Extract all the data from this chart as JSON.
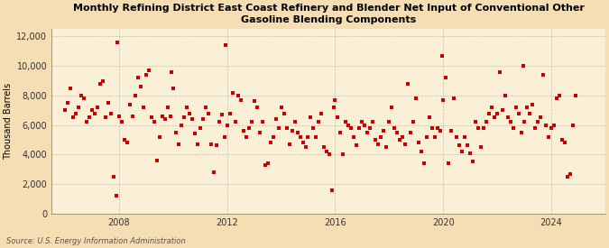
{
  "title": "Monthly Refining District East Coast Refinery and Blender Net Input of Conventional Other\nGasoline Blending Components",
  "ylabel": "Thousand Barrels",
  "source": "Source: U.S. Energy Information Administration",
  "bg_color": "#f5deb3",
  "plot_bg_color": "#faf0d7",
  "marker_color": "#cc0000",
  "marker_size": 5,
  "ylim": [
    0,
    12500
  ],
  "yticks": [
    0,
    2000,
    4000,
    6000,
    8000,
    10000,
    12000
  ],
  "ytick_labels": [
    "0",
    "2,000",
    "4,000",
    "6,000",
    "8,000",
    "10,000",
    "12,000"
  ],
  "xticks": [
    2008,
    2012,
    2016,
    2020,
    2024
  ],
  "xlim": [
    2005.5,
    2026.0
  ],
  "data": [
    [
      2006.0,
      7000
    ],
    [
      2006.1,
      7500
    ],
    [
      2006.2,
      8500
    ],
    [
      2006.3,
      6500
    ],
    [
      2006.4,
      6800
    ],
    [
      2006.5,
      7200
    ],
    [
      2006.6,
      8000
    ],
    [
      2006.7,
      7800
    ],
    [
      2006.8,
      6200
    ],
    [
      2006.9,
      6500
    ],
    [
      2007.0,
      7000
    ],
    [
      2007.1,
      6800
    ],
    [
      2007.2,
      7200
    ],
    [
      2007.3,
      8800
    ],
    [
      2007.4,
      9000
    ],
    [
      2007.5,
      6500
    ],
    [
      2007.6,
      7500
    ],
    [
      2007.7,
      6800
    ],
    [
      2007.8,
      2500
    ],
    [
      2007.9,
      1200
    ],
    [
      2007.95,
      11600
    ],
    [
      2008.0,
      6600
    ],
    [
      2008.1,
      6200
    ],
    [
      2008.2,
      5000
    ],
    [
      2008.3,
      4800
    ],
    [
      2008.4,
      7400
    ],
    [
      2008.5,
      6600
    ],
    [
      2008.6,
      8000
    ],
    [
      2008.7,
      9200
    ],
    [
      2008.8,
      8600
    ],
    [
      2008.9,
      7200
    ],
    [
      2009.0,
      9400
    ],
    [
      2009.1,
      9700
    ],
    [
      2009.2,
      6500
    ],
    [
      2009.3,
      6200
    ],
    [
      2009.4,
      3600
    ],
    [
      2009.5,
      5200
    ],
    [
      2009.6,
      6600
    ],
    [
      2009.7,
      6400
    ],
    [
      2009.8,
      7200
    ],
    [
      2009.9,
      6600
    ],
    [
      2009.95,
      9600
    ],
    [
      2010.0,
      8500
    ],
    [
      2010.1,
      5500
    ],
    [
      2010.2,
      4700
    ],
    [
      2010.3,
      6000
    ],
    [
      2010.4,
      6500
    ],
    [
      2010.5,
      7200
    ],
    [
      2010.6,
      6800
    ],
    [
      2010.7,
      6400
    ],
    [
      2010.8,
      5400
    ],
    [
      2010.9,
      4700
    ],
    [
      2011.0,
      5800
    ],
    [
      2011.1,
      6400
    ],
    [
      2011.2,
      7200
    ],
    [
      2011.3,
      6800
    ],
    [
      2011.4,
      4700
    ],
    [
      2011.5,
      2800
    ],
    [
      2011.6,
      4600
    ],
    [
      2011.7,
      6200
    ],
    [
      2011.8,
      6700
    ],
    [
      2011.9,
      5200
    ],
    [
      2011.95,
      11400
    ],
    [
      2012.0,
      6000
    ],
    [
      2012.1,
      6800
    ],
    [
      2012.2,
      8200
    ],
    [
      2012.3,
      6200
    ],
    [
      2012.4,
      8000
    ],
    [
      2012.5,
      7700
    ],
    [
      2012.6,
      5600
    ],
    [
      2012.7,
      5200
    ],
    [
      2012.8,
      5800
    ],
    [
      2012.9,
      6200
    ],
    [
      2013.0,
      7600
    ],
    [
      2013.1,
      7200
    ],
    [
      2013.2,
      5500
    ],
    [
      2013.3,
      6200
    ],
    [
      2013.4,
      3300
    ],
    [
      2013.5,
      3400
    ],
    [
      2013.6,
      4800
    ],
    [
      2013.7,
      5200
    ],
    [
      2013.8,
      6400
    ],
    [
      2013.9,
      5800
    ],
    [
      2014.0,
      7200
    ],
    [
      2014.1,
      6800
    ],
    [
      2014.2,
      5800
    ],
    [
      2014.3,
      4700
    ],
    [
      2014.4,
      5600
    ],
    [
      2014.5,
      6200
    ],
    [
      2014.6,
      5500
    ],
    [
      2014.7,
      5200
    ],
    [
      2014.8,
      4800
    ],
    [
      2014.9,
      4500
    ],
    [
      2015.0,
      5200
    ],
    [
      2015.1,
      6500
    ],
    [
      2015.2,
      5800
    ],
    [
      2015.3,
      5200
    ],
    [
      2015.4,
      6200
    ],
    [
      2015.5,
      6800
    ],
    [
      2015.6,
      4500
    ],
    [
      2015.7,
      4200
    ],
    [
      2015.8,
      4000
    ],
    [
      2015.9,
      1600
    ],
    [
      2015.95,
      7200
    ],
    [
      2016.0,
      7700
    ],
    [
      2016.1,
      6500
    ],
    [
      2016.2,
      5500
    ],
    [
      2016.3,
      4000
    ],
    [
      2016.4,
      6200
    ],
    [
      2016.5,
      6000
    ],
    [
      2016.6,
      5800
    ],
    [
      2016.7,
      5200
    ],
    [
      2016.8,
      4600
    ],
    [
      2016.9,
      5800
    ],
    [
      2017.0,
      6200
    ],
    [
      2017.1,
      6000
    ],
    [
      2017.2,
      5500
    ],
    [
      2017.3,
      5800
    ],
    [
      2017.4,
      6200
    ],
    [
      2017.5,
      5000
    ],
    [
      2017.6,
      4700
    ],
    [
      2017.7,
      5200
    ],
    [
      2017.8,
      5600
    ],
    [
      2017.9,
      4500
    ],
    [
      2018.0,
      6200
    ],
    [
      2018.1,
      7200
    ],
    [
      2018.2,
      5800
    ],
    [
      2018.3,
      5500
    ],
    [
      2018.4,
      5000
    ],
    [
      2018.5,
      5200
    ],
    [
      2018.6,
      4700
    ],
    [
      2018.7,
      8800
    ],
    [
      2018.8,
      5500
    ],
    [
      2018.9,
      6200
    ],
    [
      2019.0,
      7800
    ],
    [
      2019.1,
      4800
    ],
    [
      2019.2,
      4200
    ],
    [
      2019.3,
      3400
    ],
    [
      2019.4,
      5200
    ],
    [
      2019.5,
      6500
    ],
    [
      2019.6,
      5800
    ],
    [
      2019.7,
      5200
    ],
    [
      2019.8,
      5800
    ],
    [
      2019.9,
      5600
    ],
    [
      2019.95,
      10700
    ],
    [
      2020.0,
      7700
    ],
    [
      2020.1,
      9200
    ],
    [
      2020.2,
      3400
    ],
    [
      2020.3,
      5600
    ],
    [
      2020.4,
      7800
    ],
    [
      2020.5,
      5200
    ],
    [
      2020.6,
      4600
    ],
    [
      2020.7,
      4200
    ],
    [
      2020.8,
      5200
    ],
    [
      2020.9,
      4600
    ],
    [
      2021.0,
      4100
    ],
    [
      2021.1,
      3500
    ],
    [
      2021.2,
      6200
    ],
    [
      2021.3,
      5800
    ],
    [
      2021.4,
      4500
    ],
    [
      2021.5,
      5800
    ],
    [
      2021.6,
      6200
    ],
    [
      2021.7,
      6800
    ],
    [
      2021.8,
      7200
    ],
    [
      2021.9,
      6500
    ],
    [
      2022.0,
      6800
    ],
    [
      2022.1,
      9600
    ],
    [
      2022.2,
      7000
    ],
    [
      2022.3,
      8000
    ],
    [
      2022.4,
      6500
    ],
    [
      2022.5,
      6200
    ],
    [
      2022.6,
      5800
    ],
    [
      2022.7,
      7200
    ],
    [
      2022.8,
      6800
    ],
    [
      2022.9,
      5500
    ],
    [
      2022.95,
      10000
    ],
    [
      2023.0,
      6200
    ],
    [
      2023.1,
      7200
    ],
    [
      2023.2,
      6800
    ],
    [
      2023.3,
      7400
    ],
    [
      2023.4,
      5800
    ],
    [
      2023.5,
      6200
    ],
    [
      2023.6,
      6500
    ],
    [
      2023.7,
      9400
    ],
    [
      2023.8,
      6000
    ],
    [
      2023.9,
      5200
    ],
    [
      2024.0,
      5800
    ],
    [
      2024.1,
      6000
    ],
    [
      2024.2,
      7800
    ],
    [
      2024.3,
      8000
    ],
    [
      2024.4,
      5000
    ],
    [
      2024.5,
      4800
    ],
    [
      2024.6,
      2500
    ],
    [
      2024.7,
      2700
    ],
    [
      2024.8,
      6000
    ],
    [
      2024.9,
      8000
    ]
  ]
}
